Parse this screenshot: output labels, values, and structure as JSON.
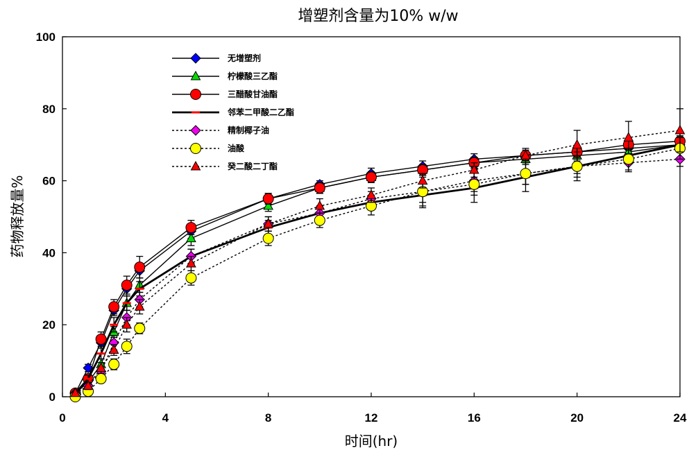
{
  "chart_data": {
    "type": "line",
    "title": "增塑剂含量为10% w/w",
    "xlabel": "时间(hr)",
    "ylabel": "药物释放量%",
    "xlim": [
      0,
      24
    ],
    "ylim": [
      0,
      100
    ],
    "xticks": [
      0,
      4,
      8,
      12,
      16,
      20,
      24
    ],
    "yticks": [
      0,
      20,
      40,
      60,
      80,
      100
    ],
    "grid": false,
    "legend_position": "top-left",
    "series": [
      {
        "name": "无增塑剂",
        "marker": "diamond",
        "color": "#0000ff",
        "line": "solid",
        "x": [
          0.5,
          1,
          1.5,
          2,
          2.5,
          3,
          5,
          8,
          10,
          12,
          14,
          16,
          18,
          20,
          22,
          24
        ],
        "y": [
          1,
          8,
          15,
          24,
          30,
          35,
          46,
          55,
          59,
          62,
          64,
          66,
          67,
          68,
          69,
          70
        ],
        "err": [
          0.5,
          1,
          1.5,
          1.5,
          2,
          2,
          2,
          1.5,
          1,
          1.5,
          1.5,
          1.5,
          1.5,
          1.5,
          1.5,
          1.5
        ]
      },
      {
        "name": "柠檬酸三乙酯",
        "marker": "triangle",
        "color": "#00dd00",
        "line": "solid",
        "x": [
          0.5,
          1,
          1.5,
          2,
          2.5,
          3,
          5,
          8,
          10,
          12,
          14,
          16,
          18,
          20,
          22,
          24
        ],
        "y": [
          1,
          4,
          9,
          18,
          26,
          31,
          44,
          53,
          58,
          61,
          63,
          65,
          66,
          67,
          68,
          70
        ],
        "err": [
          0.5,
          1,
          1.5,
          1.5,
          2,
          2,
          2,
          1.5,
          1.5,
          1.5,
          1.5,
          1.5,
          1.5,
          1.5,
          1.5,
          1.5
        ]
      },
      {
        "name": "三醋酸甘油酯",
        "marker": "circle",
        "color": "#ff0000",
        "line": "solid",
        "x": [
          0.5,
          1,
          1.5,
          2,
          2.5,
          3,
          5,
          8,
          10,
          12,
          14,
          16,
          18,
          20,
          22,
          24
        ],
        "y": [
          1,
          5,
          16,
          25,
          31,
          36,
          47,
          55,
          58,
          61,
          63,
          65,
          67,
          68,
          70,
          71
        ],
        "err": [
          0.5,
          1,
          2,
          2,
          2.5,
          3,
          2,
          1.5,
          1.5,
          1.5,
          1.5,
          1.5,
          1.5,
          1.5,
          1.5,
          1.5
        ]
      },
      {
        "name": "邻苯二甲酸二乙酯",
        "marker": "dash",
        "color": "#ff0000",
        "line": "solid-bold",
        "x": [
          0.5,
          1,
          1.5,
          2,
          2.5,
          3,
          5,
          8,
          10,
          12,
          14,
          16,
          18,
          20,
          22,
          24
        ],
        "y": [
          1,
          5,
          12,
          20,
          26,
          30,
          39,
          47,
          51,
          54,
          56,
          58,
          61,
          64,
          67,
          70
        ],
        "err": [
          0.5,
          1,
          1.5,
          2,
          2,
          2,
          2,
          2,
          2,
          2,
          2,
          2,
          2,
          2,
          2,
          2
        ]
      },
      {
        "name": "精制椰子油",
        "marker": "diamond",
        "color": "#ee00ee",
        "line": "dotted",
        "x": [
          0.5,
          1,
          1.5,
          2,
          2.5,
          3,
          5,
          8,
          10,
          12,
          14,
          16,
          18,
          20,
          22,
          24
        ],
        "y": [
          1,
          3,
          7,
          15,
          22,
          27,
          39,
          48,
          51,
          55,
          57,
          60,
          62,
          64,
          65,
          66
        ],
        "err": [
          0.5,
          1,
          1.5,
          2,
          2,
          2,
          2,
          2,
          2,
          2,
          4,
          3,
          3,
          3,
          2.5,
          2
        ]
      },
      {
        "name": "油酸",
        "marker": "circle",
        "color": "#ffff00",
        "line": "dotted",
        "x": [
          0.5,
          1,
          1.5,
          2,
          2.5,
          3,
          5,
          8,
          10,
          12,
          14,
          16,
          18,
          20,
          22,
          24
        ],
        "y": [
          0,
          1.5,
          5,
          9,
          14,
          19,
          33,
          44,
          49,
          53,
          57,
          59,
          62,
          64,
          66,
          69
        ],
        "err": [
          0.5,
          1,
          1,
          1.5,
          2,
          1.5,
          2,
          2,
          2,
          2.5,
          4.5,
          5,
          5,
          4,
          3,
          3
        ]
      },
      {
        "name": "癸二酸二丁酯",
        "marker": "triangle",
        "color": "#ff0000",
        "line": "dotted",
        "x": [
          0.5,
          1,
          1.5,
          2,
          2.5,
          3,
          5,
          8,
          10,
          12,
          14,
          16,
          18,
          20,
          22,
          24
        ],
        "y": [
          1,
          3,
          8,
          13,
          20,
          25,
          37,
          48,
          53,
          56,
          60,
          63,
          67,
          70,
          72,
          74
        ],
        "err": [
          0.5,
          1,
          1.5,
          1.5,
          2,
          2,
          2,
          2,
          2,
          2,
          2,
          2,
          2,
          4,
          4.5,
          6
        ]
      }
    ]
  }
}
